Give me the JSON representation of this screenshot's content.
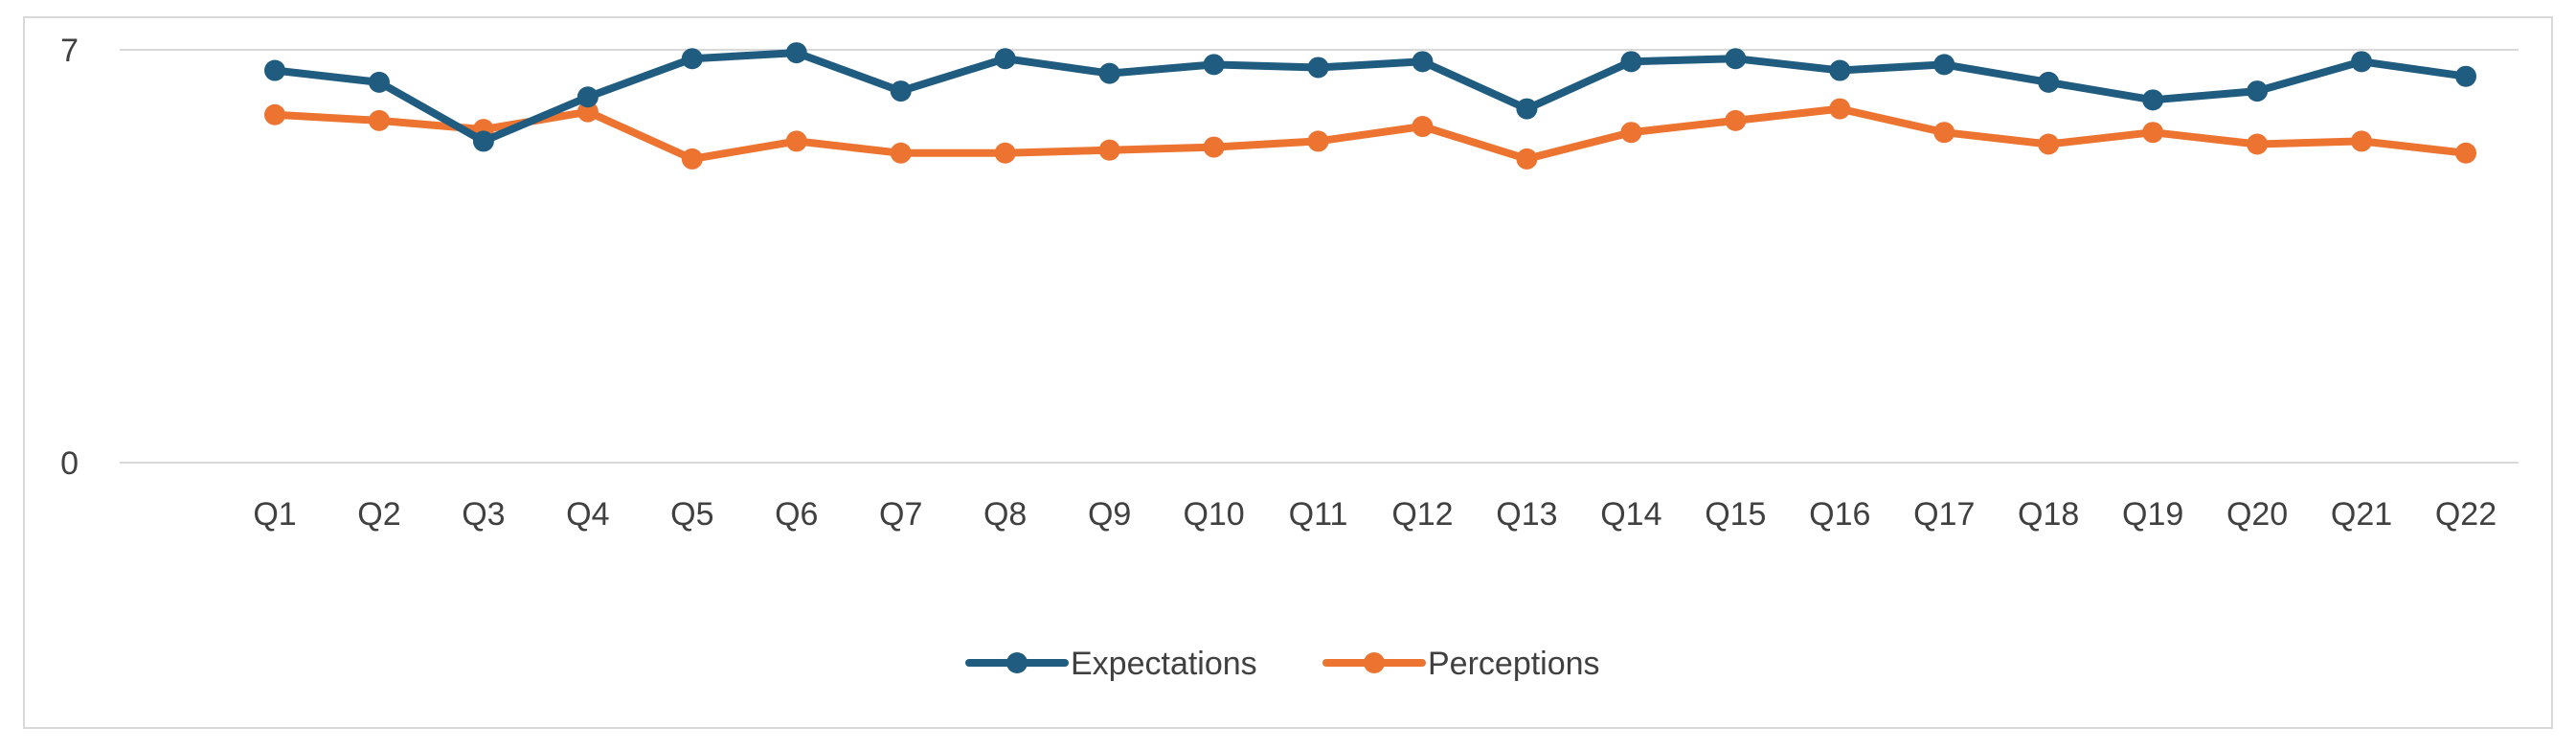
{
  "chart_data": {
    "type": "line",
    "title": "",
    "xlabel": "",
    "ylabel": "",
    "ylim": [
      0,
      7
    ],
    "y_ticks": [
      "0",
      "7"
    ],
    "grid": true,
    "legend_position": "bottom",
    "categories": [
      "Q1",
      "Q2",
      "Q3",
      "Q4",
      "Q5",
      "Q6",
      "Q7",
      "Q8",
      "Q9",
      "Q10",
      "Q11",
      "Q12",
      "Q13",
      "Q14",
      "Q15",
      "Q16",
      "Q17",
      "Q18",
      "Q19",
      "Q20",
      "Q21",
      "Q22"
    ],
    "series": [
      {
        "name": "Expectations",
        "color": "#1f5c80",
        "values": [
          6.65,
          6.45,
          5.45,
          6.2,
          6.85,
          6.95,
          6.3,
          6.85,
          6.6,
          6.75,
          6.7,
          6.8,
          6.0,
          6.8,
          6.85,
          6.65,
          6.75,
          6.45,
          6.15,
          6.3,
          6.8,
          6.55
        ]
      },
      {
        "name": "Perceptions",
        "color": "#ed7430",
        "values": [
          5.9,
          5.8,
          5.65,
          5.95,
          5.15,
          5.45,
          5.25,
          5.25,
          5.3,
          5.35,
          5.45,
          5.7,
          5.15,
          5.6,
          5.8,
          6.0,
          5.6,
          5.4,
          5.6,
          5.4,
          5.45,
          5.25
        ]
      }
    ]
  }
}
